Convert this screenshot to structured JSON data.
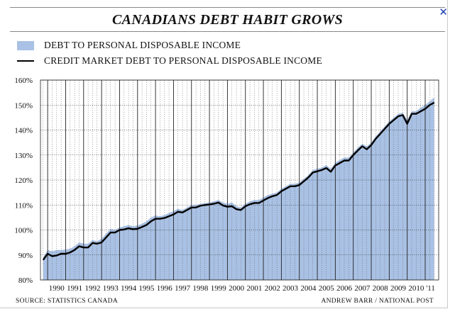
{
  "header": {
    "title": "CANADIANS DEBT HABIT GROWS",
    "close_icon": "close-icon"
  },
  "footer": {
    "source": "SOURCE: STATISTICS CANADA",
    "credit": "ANDREW BARR / NATIONAL POST"
  },
  "colors": {
    "area": "#a9c1e4",
    "line": "#000000",
    "accent": "#1b3fb5"
  },
  "chart_data": {
    "type": "area",
    "title": "CANADIANS DEBT HABIT GROWS",
    "xlabel": "",
    "ylabel": "",
    "ylim": [
      80,
      160
    ],
    "yticks": [
      "80%",
      "90%",
      "100%",
      "110%",
      "120%",
      "130%",
      "140%",
      "150%",
      "160%"
    ],
    "xticks": [
      "1990",
      "1991",
      "1992",
      "1993",
      "1994",
      "1995",
      "1996",
      "1997",
      "1998",
      "1999",
      "2000",
      "2001",
      "2002",
      "2003",
      "2004",
      "2005",
      "2006",
      "2007",
      "2008",
      "2009",
      "2010",
      "'11"
    ],
    "xlim": [
      1989.6,
      2011.75
    ],
    "grid": true,
    "legend_position": "top-left",
    "series": [
      {
        "name": "DEBT TO PERSONAL DISPOSABLE INCOME",
        "type": "area",
        "x": [
          1989.75,
          1990,
          1990.25,
          1990.5,
          1990.75,
          1991,
          1991.25,
          1991.5,
          1991.75,
          1992,
          1992.25,
          1992.5,
          1992.75,
          1993,
          1993.25,
          1993.5,
          1993.75,
          1994,
          1994.25,
          1994.5,
          1994.75,
          1995,
          1995.25,
          1995.5,
          1995.75,
          1996,
          1996.25,
          1996.5,
          1996.75,
          1997,
          1997.25,
          1997.5,
          1997.75,
          1998,
          1998.25,
          1998.5,
          1998.75,
          1999,
          1999.25,
          1999.5,
          1999.75,
          2000,
          2000.25,
          2000.5,
          2000.75,
          2001,
          2001.25,
          2001.5,
          2001.75,
          2002,
          2002.25,
          2002.5,
          2002.75,
          2003,
          2003.25,
          2003.5,
          2003.75,
          2004,
          2004.25,
          2004.5,
          2004.75,
          2005,
          2005.25,
          2005.5,
          2005.75,
          2006,
          2006.25,
          2006.5,
          2006.75,
          2007,
          2007.25,
          2007.5,
          2007.75,
          2008,
          2008.25,
          2008.5,
          2008.75,
          2009,
          2009.25,
          2009.5,
          2009.75,
          2010,
          2010.25,
          2010.5,
          2010.75,
          2011,
          2011.25,
          2011.5
        ],
        "values": [
          89.0,
          92.0,
          91.5,
          92.0,
          92.0,
          92.2,
          92.5,
          93.5,
          95.0,
          94.5,
          94.5,
          96.0,
          95.5,
          96.5,
          98.5,
          100.5,
          100.0,
          101.0,
          101.5,
          102.0,
          101.5,
          101.8,
          102.5,
          103.5,
          105.0,
          105.8,
          105.5,
          106.0,
          106.8,
          107.5,
          108.5,
          108.0,
          109.0,
          110.0,
          110.0,
          110.5,
          110.8,
          111.0,
          111.5,
          112.0,
          111.0,
          110.5,
          111.0,
          109.5,
          109.0,
          110.5,
          111.5,
          112.0,
          112.0,
          113.0,
          114.0,
          114.5,
          115.0,
          116.5,
          117.5,
          118.5,
          118.5,
          119.0,
          120.5,
          122.0,
          124.0,
          124.5,
          125.0,
          126.0,
          124.5,
          127.0,
          128.0,
          129.0,
          129.0,
          131.0,
          133.0,
          134.5,
          133.5,
          135.0,
          137.5,
          139.5,
          141.5,
          143.5,
          145.0,
          146.5,
          147.0,
          144.0,
          147.5,
          147.5,
          149.0,
          150.0,
          151.5,
          153.0
        ]
      },
      {
        "name": "CREDIT MARKET DEBT TO PERSONAL DISPOSABLE INCOME",
        "type": "line",
        "x": [
          1989.75,
          1990,
          1990.25,
          1990.5,
          1990.75,
          1991,
          1991.25,
          1991.5,
          1991.75,
          1992,
          1992.25,
          1992.5,
          1992.75,
          1993,
          1993.25,
          1993.5,
          1993.75,
          1994,
          1994.25,
          1994.5,
          1994.75,
          1995,
          1995.25,
          1995.5,
          1995.75,
          1996,
          1996.25,
          1996.5,
          1996.75,
          1997,
          1997.25,
          1997.5,
          1997.75,
          1998,
          1998.25,
          1998.5,
          1998.75,
          1999,
          1999.25,
          1999.5,
          1999.75,
          2000,
          2000.25,
          2000.5,
          2000.75,
          2001,
          2001.25,
          2001.5,
          2001.75,
          2002,
          2002.25,
          2002.5,
          2002.75,
          2003,
          2003.25,
          2003.5,
          2003.75,
          2004,
          2004.25,
          2004.5,
          2004.75,
          2005,
          2005.25,
          2005.5,
          2005.75,
          2006,
          2006.25,
          2006.5,
          2006.75,
          2007,
          2007.25,
          2007.5,
          2007.75,
          2008,
          2008.25,
          2008.5,
          2008.75,
          2009,
          2009.25,
          2009.5,
          2009.75,
          2010,
          2010.25,
          2010.5,
          2010.75,
          2011,
          2011.25,
          2011.5
        ],
        "values": [
          88.0,
          90.5,
          89.5,
          89.8,
          90.5,
          90.5,
          91.0,
          92.0,
          93.5,
          93.0,
          93.0,
          94.8,
          94.5,
          95.0,
          97.0,
          99.0,
          99.0,
          100.0,
          100.2,
          100.7,
          100.3,
          100.5,
          101.2,
          102.0,
          103.5,
          104.5,
          104.5,
          104.8,
          105.5,
          106.2,
          107.3,
          107.0,
          108.0,
          109.0,
          109.0,
          109.7,
          110.0,
          110.2,
          110.5,
          111.0,
          109.8,
          109.3,
          109.5,
          108.3,
          108.0,
          109.5,
          110.3,
          110.8,
          110.8,
          111.8,
          112.8,
          113.5,
          114.0,
          115.5,
          116.5,
          117.5,
          117.5,
          118.0,
          119.5,
          121.0,
          123.0,
          123.5,
          124.0,
          124.8,
          123.3,
          125.8,
          126.8,
          127.8,
          127.8,
          130.0,
          131.8,
          133.5,
          132.3,
          134.0,
          136.5,
          138.5,
          140.5,
          142.5,
          144.0,
          145.5,
          146.0,
          142.5,
          146.5,
          146.5,
          147.5,
          148.5,
          150.0,
          151.0
        ]
      }
    ]
  }
}
